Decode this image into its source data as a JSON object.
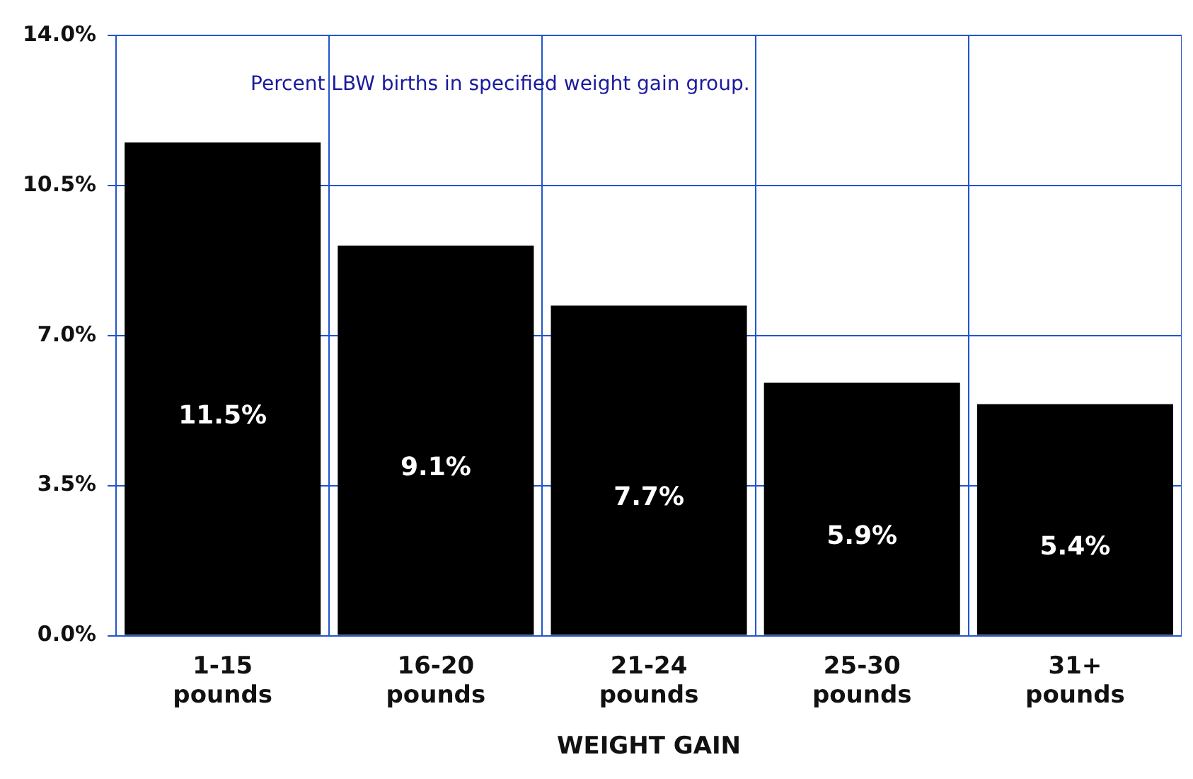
{
  "chart_data": {
    "type": "bar",
    "xlabel": "WEIGHT GAIN",
    "categories": [
      "1-15 pounds",
      "16-20 pounds",
      "21-24 pounds",
      "25-30 pounds",
      "31+ pounds"
    ],
    "values": [
      11.5,
      9.1,
      7.7,
      5.9,
      5.4
    ],
    "value_labels": [
      "11.5%",
      "9.1%",
      "7.7%",
      "5.9%",
      "5.4%"
    ],
    "color": "#000000",
    "ylim": [
      0,
      14
    ],
    "yticks": [
      {
        "value": 0,
        "label": "0.0%"
      },
      {
        "value": 3.5,
        "label": "3.5%"
      },
      {
        "value": 7,
        "label": "7.0%"
      },
      {
        "value": 10.5,
        "label": "10.5%"
      },
      {
        "value": 14,
        "label": "14.0%"
      }
    ],
    "grid": true,
    "annotations": [
      "Percent LBW births in specified weight gain group."
    ]
  }
}
